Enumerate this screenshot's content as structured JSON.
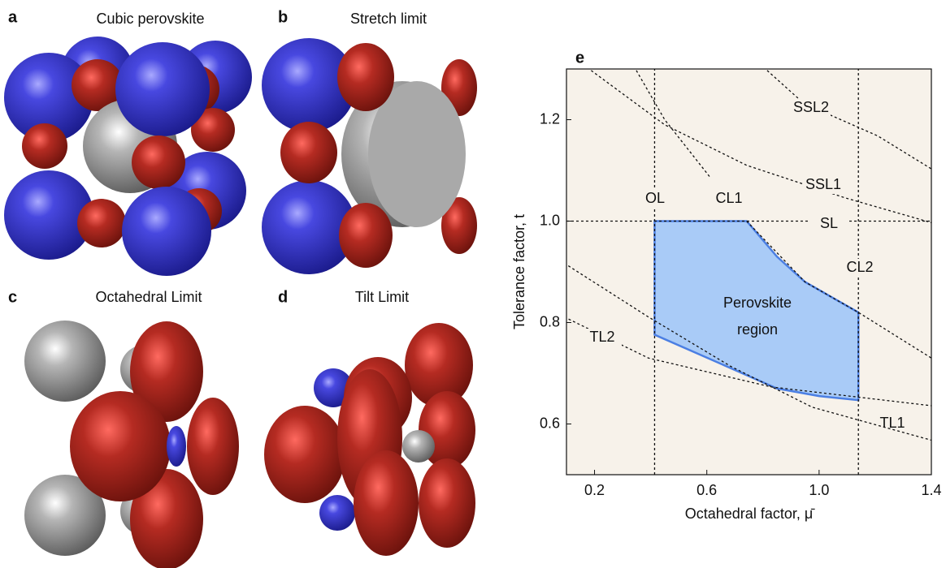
{
  "panels": [
    {
      "letter": "a",
      "title": "Cubic perovskite"
    },
    {
      "letter": "b",
      "title": "Stretch limit"
    },
    {
      "letter": "c",
      "title": "Octahedral Limit"
    },
    {
      "letter": "d",
      "title": "Tilt Limit"
    }
  ],
  "chart_data": {
    "type": "line",
    "label": "e",
    "x_label": "Octahedral factor, μ̄",
    "y_label": "Tolerance factor, t",
    "xlim": [
      0.1,
      1.4
    ],
    "ylim": [
      0.5,
      1.3
    ],
    "xticks": [
      0.2,
      0.6,
      {
        "value": 1,
        "label": "1.0"
      },
      1.4
    ],
    "yticks": [
      0.6,
      0.8,
      {
        "value": 1,
        "label": "1.0"
      },
      1.2
    ],
    "background": "#f7f2ea",
    "region": {
      "label": [
        "Perovskite",
        "region"
      ],
      "color": "#a9cbf7",
      "edge_color": "#4b7fe3",
      "x": [
        0.414,
        0.742,
        0.85,
        0.95,
        1.14,
        1.14,
        1.0,
        0.85,
        0.414
      ],
      "y": [
        1.0,
        1.0,
        0.93,
        0.88,
        0.82,
        0.647,
        0.655,
        0.67,
        0.776
      ]
    },
    "series": [
      {
        "name": "OL",
        "x": [
          0.414,
          0.414
        ],
        "y": [
          0.5,
          1.3
        ]
      },
      {
        "name": "CL1",
        "x": [
          0.349,
          0.45,
          0.611
        ],
        "y": [
          1.297,
          1.2,
          1.087
        ]
      },
      {
        "name": "SL",
        "x": [
          0.1,
          1.4
        ],
        "y": [
          1.0,
          1.0
        ]
      },
      {
        "name": "CL2",
        "x": [
          1.14,
          1.14
        ],
        "y": [
          0.5,
          1.3
        ]
      },
      {
        "name": "SSL1",
        "x": [
          0.188,
          0.45,
          0.742,
          1.092,
          1.4
        ],
        "y": [
          1.297,
          1.19,
          1.11,
          1.046,
          0.997
        ]
      },
      {
        "name": "SSL2",
        "x": [
          0.815,
          0.946,
          1.209,
          1.4
        ],
        "y": [
          1.297,
          1.232,
          1.168,
          1.103
        ]
      },
      {
        "name": "TL1",
        "x": [
          0.092,
          0.392,
          0.83,
          1.4
        ],
        "y": [
          0.811,
          0.73,
          0.673,
          0.636
        ]
      },
      {
        "name": "TL2",
        "x": [
          0.092,
          0.392,
          0.684,
          0.976,
          1.4
        ],
        "y": [
          0.917,
          0.811,
          0.714,
          0.633,
          0.568
        ]
      },
      {
        "x": [
          0.742,
          0.95,
          1.14,
          1.4
        ],
        "y": [
          1.0,
          0.88,
          0.82,
          0.73
        ]
      }
    ]
  }
}
